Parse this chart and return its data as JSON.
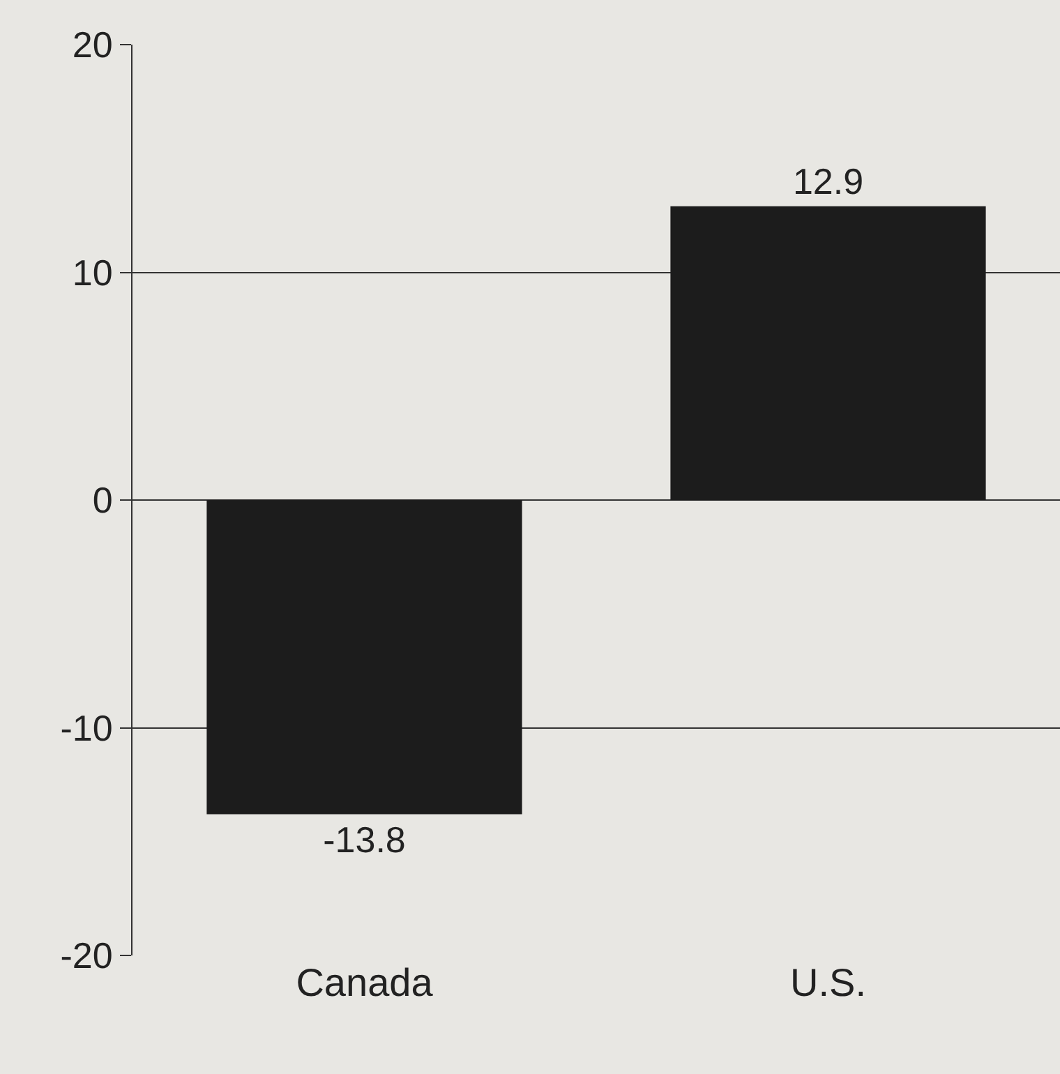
{
  "chart_data": {
    "type": "bar",
    "categories": [
      "Canada",
      "U.S."
    ],
    "values": [
      -13.8,
      12.9
    ],
    "color": "#1c1c1c",
    "ylim": [
      -20,
      20
    ],
    "yticks": [
      -20,
      -10,
      0,
      10,
      20
    ],
    "grid": "y",
    "data_labels": true
  }
}
